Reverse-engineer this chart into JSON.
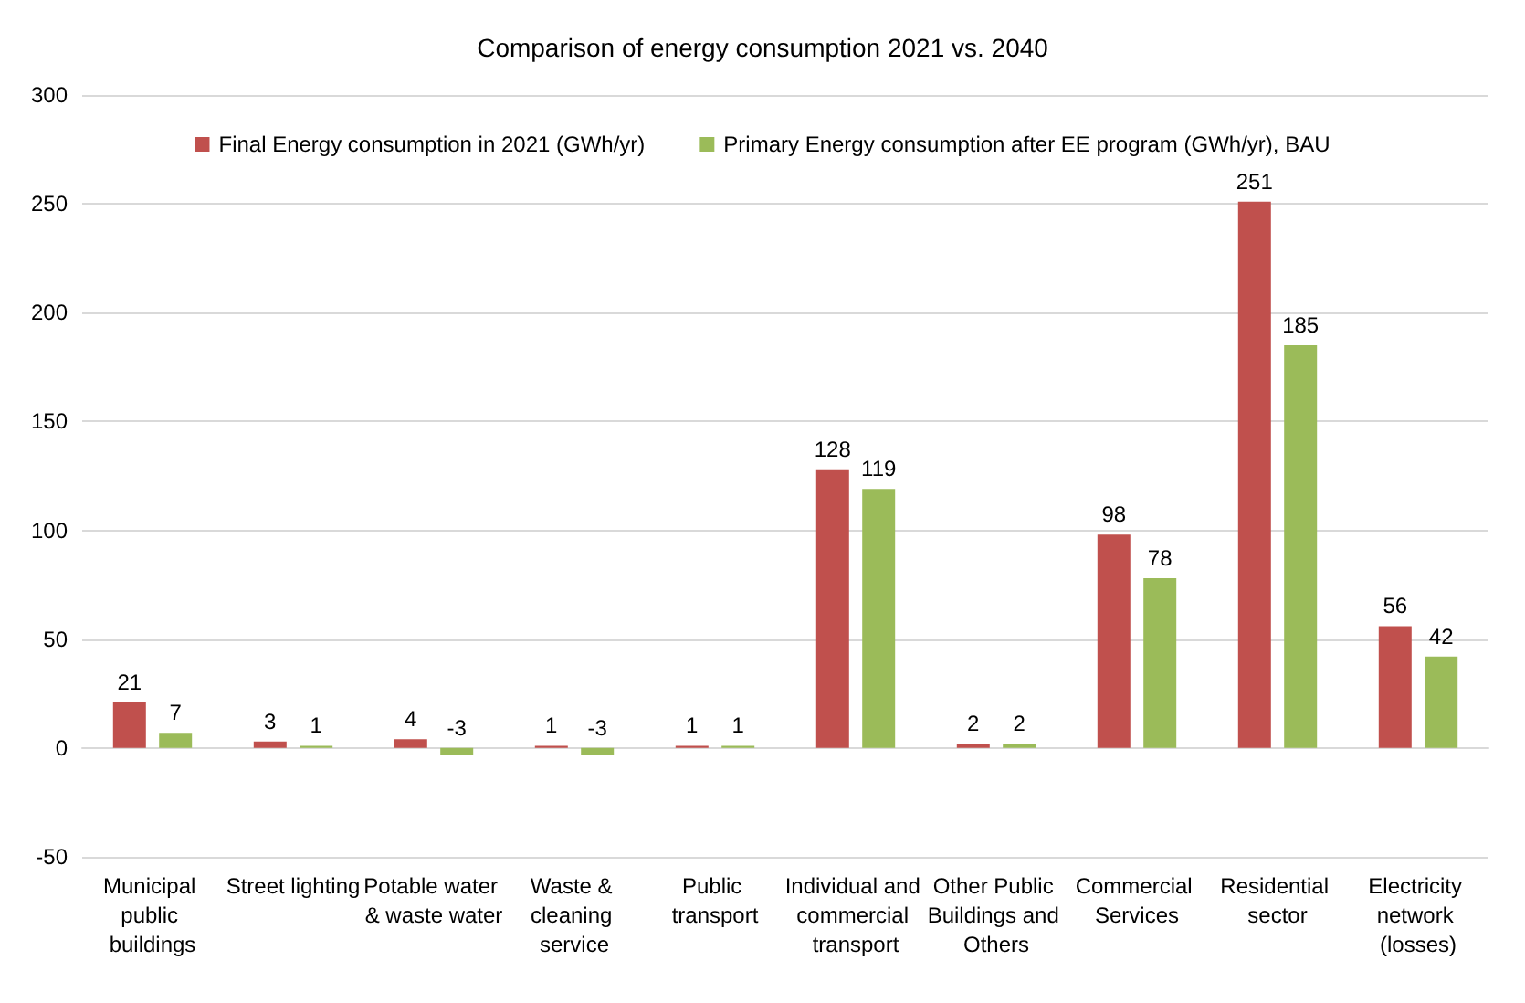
{
  "chart_data": {
    "type": "bar",
    "title": "Comparison of energy consumption 2021 vs. 2040",
    "categories": [
      "Municipal public buildings",
      "Street lighting",
      "Potable water & waste water",
      "Waste & cleaning service",
      "Public transport",
      "Individual and commercial transport",
      "Other Public Buildings and Others",
      "Commercial Services",
      "Residential sector",
      "Electricity network (losses)"
    ],
    "series": [
      {
        "name": "Final Energy consumption in 2021 (GWh/yr)",
        "color": "#c0504d",
        "values": [
          21,
          3,
          4,
          1,
          1,
          128,
          2,
          98,
          251,
          56
        ]
      },
      {
        "name": "Primary Energy consumption after EE program (GWh/yr), BAU",
        "color": "#9bbb59",
        "values": [
          7,
          1,
          -3,
          -3,
          1,
          119,
          2,
          78,
          185,
          42
        ]
      }
    ],
    "ylim": [
      -50,
      300
    ],
    "yticks": [
      -50,
      0,
      50,
      100,
      150,
      200,
      250,
      300
    ],
    "grid": "y",
    "legend": "top",
    "data_labels": true
  }
}
